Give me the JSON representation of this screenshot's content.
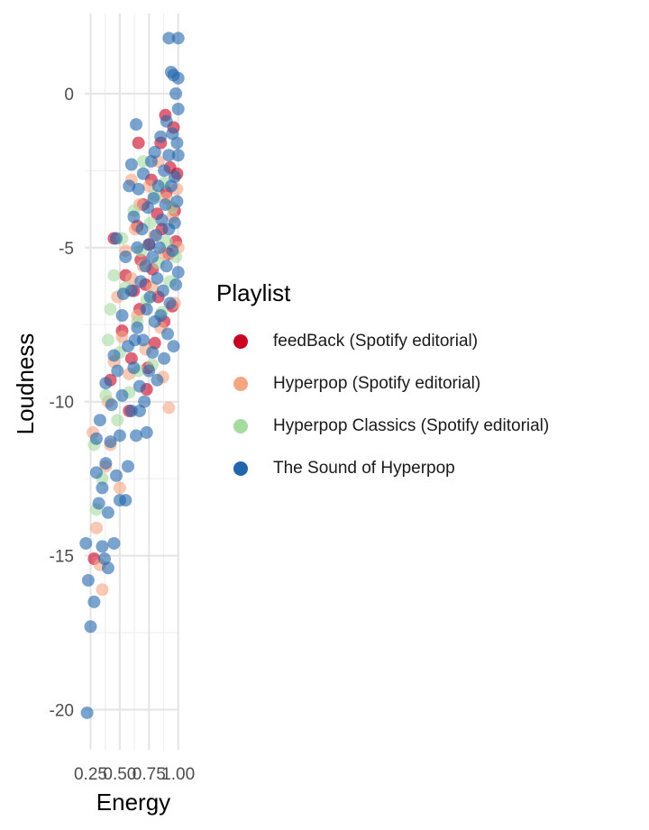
{
  "chart_data": {
    "type": "scatter",
    "xlabel": "Energy",
    "ylabel": "Loudness",
    "xlim": [
      0.2,
      1.01
    ],
    "ylim": [
      -21.3,
      2.6
    ],
    "x_ticks": [
      0.25,
      0.5,
      0.75,
      1.0
    ],
    "x_tick_labels": [
      "0.25",
      "0.50",
      "0.75",
      "1.00"
    ],
    "y_ticks": [
      -20,
      -15,
      -10,
      -5,
      0
    ],
    "y_tick_labels": [
      "-20",
      "-15",
      "-10",
      "-5",
      "0"
    ],
    "grid": true,
    "legend_title": "Playlist",
    "legend_position": "right",
    "series": [
      {
        "name": "feedBack (Spotify editorial)",
        "color": "#CA0020",
        "points": [
          [
            0.28,
            -15.1
          ],
          [
            0.42,
            -9.3
          ],
          [
            0.45,
            -4.7
          ],
          [
            0.52,
            -7.7
          ],
          [
            0.55,
            -5.9
          ],
          [
            0.6,
            -8.6
          ],
          [
            0.62,
            -6.4
          ],
          [
            0.65,
            -4.3
          ],
          [
            0.67,
            -7.0
          ],
          [
            0.68,
            -5.4
          ],
          [
            0.7,
            -3.6
          ],
          [
            0.72,
            -6.2
          ],
          [
            0.73,
            -9.6
          ],
          [
            0.75,
            -4.9
          ],
          [
            0.77,
            -2.8
          ],
          [
            0.78,
            -5.7
          ],
          [
            0.8,
            -8.1
          ],
          [
            0.82,
            -3.9
          ],
          [
            0.83,
            -6.6
          ],
          [
            0.85,
            -1.6
          ],
          [
            0.86,
            -4.4
          ],
          [
            0.88,
            -7.4
          ],
          [
            0.9,
            -3.2
          ],
          [
            0.92,
            -5.2
          ],
          [
            0.93,
            -2.4
          ],
          [
            0.95,
            -6.9
          ],
          [
            0.96,
            -1.1
          ],
          [
            0.97,
            -3.8
          ],
          [
            0.98,
            -4.8
          ],
          [
            0.99,
            -2.6
          ],
          [
            0.66,
            -1.6
          ],
          [
            0.58,
            -10.3
          ],
          [
            0.74,
            -8.9
          ],
          [
            0.89,
            -0.7
          ]
        ]
      },
      {
        "name": "Hyperpop (Spotify editorial)",
        "color": "#F4A582",
        "points": [
          [
            0.27,
            -11.0
          ],
          [
            0.33,
            -15.3
          ],
          [
            0.35,
            -16.1
          ],
          [
            0.38,
            -12.1
          ],
          [
            0.4,
            -10.0
          ],
          [
            0.45,
            -8.7
          ],
          [
            0.48,
            -6.6
          ],
          [
            0.5,
            -12.8
          ],
          [
            0.52,
            -7.9
          ],
          [
            0.55,
            -5.1
          ],
          [
            0.58,
            -9.1
          ],
          [
            0.6,
            -6.0
          ],
          [
            0.63,
            -4.4
          ],
          [
            0.65,
            -7.2
          ],
          [
            0.67,
            -3.6
          ],
          [
            0.7,
            -5.6
          ],
          [
            0.72,
            -8.3
          ],
          [
            0.75,
            -3.0
          ],
          [
            0.78,
            -6.3
          ],
          [
            0.8,
            -4.6
          ],
          [
            0.83,
            -2.2
          ],
          [
            0.85,
            -7.6
          ],
          [
            0.88,
            -5.2
          ],
          [
            0.9,
            -3.4
          ],
          [
            0.92,
            -10.2
          ],
          [
            0.95,
            -4.0
          ],
          [
            0.97,
            -6.8
          ],
          [
            0.99,
            -3.1
          ],
          [
            1.0,
            -5.0
          ],
          [
            0.3,
            -14.1
          ],
          [
            0.42,
            -11.4
          ],
          [
            0.6,
            -2.8
          ],
          [
            0.87,
            -9.2
          ]
        ]
      },
      {
        "name": "Hyperpop Classics (Spotify editorial)",
        "color": "#A6DBA0",
        "points": [
          [
            0.28,
            -11.4
          ],
          [
            0.3,
            -13.5
          ],
          [
            0.35,
            -12.5
          ],
          [
            0.38,
            -9.8
          ],
          [
            0.42,
            -7.0
          ],
          [
            0.45,
            -5.9
          ],
          [
            0.5,
            -8.4
          ],
          [
            0.52,
            -4.7
          ],
          [
            0.55,
            -6.3
          ],
          [
            0.58,
            -9.7
          ],
          [
            0.62,
            -3.8
          ],
          [
            0.65,
            -7.4
          ],
          [
            0.68,
            -5.1
          ],
          [
            0.7,
            -2.2
          ],
          [
            0.73,
            -6.7
          ],
          [
            0.76,
            -4.2
          ],
          [
            0.78,
            -8.8
          ],
          [
            0.8,
            -3.3
          ],
          [
            0.83,
            -5.5
          ],
          [
            0.86,
            -7.1
          ],
          [
            0.88,
            -2.9
          ],
          [
            0.9,
            -4.8
          ],
          [
            0.93,
            -6.1
          ],
          [
            0.95,
            -3.7
          ],
          [
            0.98,
            -5.3
          ],
          [
            0.4,
            -8.0
          ],
          [
            0.48,
            -10.6
          ],
          [
            0.66,
            -9.0
          ]
        ]
      },
      {
        "name": "The Sound of Hyperpop",
        "color": "#2166AC",
        "points": [
          [
            0.21,
            -14.6
          ],
          [
            0.23,
            -15.8
          ],
          [
            0.22,
            -20.1
          ],
          [
            0.25,
            -17.3
          ],
          [
            0.28,
            -16.5
          ],
          [
            0.3,
            -11.2
          ],
          [
            0.3,
            -12.3
          ],
          [
            0.32,
            -13.3
          ],
          [
            0.33,
            -10.6
          ],
          [
            0.35,
            -12.8
          ],
          [
            0.35,
            -14.7
          ],
          [
            0.37,
            -15.1
          ],
          [
            0.38,
            -12.0
          ],
          [
            0.38,
            -9.4
          ],
          [
            0.4,
            -15.4
          ],
          [
            0.4,
            -13.6
          ],
          [
            0.42,
            -11.3
          ],
          [
            0.43,
            -10.1
          ],
          [
            0.45,
            -8.5
          ],
          [
            0.45,
            -14.6
          ],
          [
            0.47,
            -12.4
          ],
          [
            0.48,
            -9.0
          ],
          [
            0.5,
            -13.2
          ],
          [
            0.5,
            -11.1
          ],
          [
            0.52,
            -7.2
          ],
          [
            0.52,
            -9.8
          ],
          [
            0.55,
            -13.2
          ],
          [
            0.55,
            -5.3
          ],
          [
            0.57,
            -8.2
          ],
          [
            0.57,
            -12.1
          ],
          [
            0.6,
            -6.4
          ],
          [
            0.6,
            -10.3
          ],
          [
            0.6,
            -2.3
          ],
          [
            0.62,
            -4.0
          ],
          [
            0.62,
            -8.9
          ],
          [
            0.64,
            -11.1
          ],
          [
            0.65,
            -5.0
          ],
          [
            0.65,
            -7.6
          ],
          [
            0.66,
            -3.1
          ],
          [
            0.67,
            -9.5
          ],
          [
            0.68,
            -6.1
          ],
          [
            0.69,
            -4.4
          ],
          [
            0.7,
            -8.0
          ],
          [
            0.7,
            -2.6
          ],
          [
            0.71,
            -10.0
          ],
          [
            0.72,
            -5.6
          ],
          [
            0.73,
            -7.0
          ],
          [
            0.74,
            -3.7
          ],
          [
            0.75,
            -9.0
          ],
          [
            0.75,
            -4.9
          ],
          [
            0.76,
            -6.6
          ],
          [
            0.77,
            -2.2
          ],
          [
            0.78,
            -8.4
          ],
          [
            0.78,
            -5.3
          ],
          [
            0.79,
            -3.4
          ],
          [
            0.8,
            -7.4
          ],
          [
            0.8,
            -1.9
          ],
          [
            0.81,
            -4.6
          ],
          [
            0.82,
            -6.0
          ],
          [
            0.82,
            -9.3
          ],
          [
            0.83,
            -3.0
          ],
          [
            0.84,
            -5.0
          ],
          [
            0.85,
            -7.2
          ],
          [
            0.85,
            -1.4
          ],
          [
            0.86,
            -4.1
          ],
          [
            0.87,
            -6.4
          ],
          [
            0.88,
            -2.5
          ],
          [
            0.88,
            -8.6
          ],
          [
            0.89,
            -3.6
          ],
          [
            0.9,
            -5.6
          ],
          [
            0.9,
            -0.9
          ],
          [
            0.91,
            -7.8
          ],
          [
            0.92,
            -2.0
          ],
          [
            0.92,
            -4.4
          ],
          [
            0.93,
            -6.8
          ],
          [
            0.94,
            0.7
          ],
          [
            0.94,
            -3.0
          ],
          [
            0.95,
            -5.1
          ],
          [
            0.95,
            -1.3
          ],
          [
            0.96,
            -8.2
          ],
          [
            0.97,
            -2.7
          ],
          [
            0.97,
            -4.2
          ],
          [
            0.98,
            0.0
          ],
          [
            0.98,
            -6.2
          ],
          [
            0.99,
            -1.6
          ],
          [
            0.99,
            -3.5
          ],
          [
            1.0,
            1.8
          ],
          [
            1.0,
            -0.5
          ],
          [
            1.0,
            -5.8
          ],
          [
            1.0,
            -2.0
          ],
          [
            0.92,
            1.8
          ],
          [
            0.96,
            0.6
          ],
          [
            1.0,
            0.5
          ],
          [
            0.64,
            -1.0
          ],
          [
            0.58,
            -3.0
          ],
          [
            0.47,
            -4.7
          ],
          [
            0.53,
            -6.5
          ],
          [
            0.63,
            -8.0
          ],
          [
            0.73,
            -11.0
          ],
          [
            0.67,
            -10.3
          ]
        ]
      }
    ]
  }
}
